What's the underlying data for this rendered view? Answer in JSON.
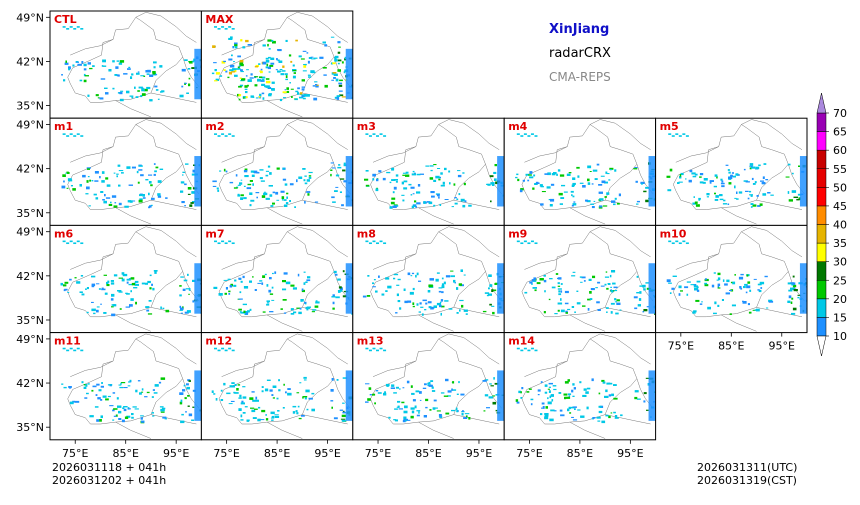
{
  "header": {
    "region": "XinJiang",
    "variable": "radarCRX",
    "model": "CMA-REPS"
  },
  "footer": {
    "init_line1": "2026031118  +  041h",
    "init_line2": "2026031202  +  041h",
    "valid_utc": "2026031311(UTC)",
    "valid_cst": "2026031319(CST)"
  },
  "chart_data": {
    "type": "heatmap",
    "title": "XinJiang radarCRX CMA-REPS",
    "panels": [
      {
        "label": "CTL",
        "row": 0,
        "col": 0
      },
      {
        "label": "MAX",
        "row": 0,
        "col": 1
      },
      {
        "label": "m1",
        "row": 1,
        "col": 0
      },
      {
        "label": "m2",
        "row": 1,
        "col": 1
      },
      {
        "label": "m3",
        "row": 1,
        "col": 2
      },
      {
        "label": "m4",
        "row": 1,
        "col": 3
      },
      {
        "label": "m5",
        "row": 1,
        "col": 4
      },
      {
        "label": "m6",
        "row": 2,
        "col": 0
      },
      {
        "label": "m7",
        "row": 2,
        "col": 1
      },
      {
        "label": "m8",
        "row": 2,
        "col": 2
      },
      {
        "label": "m9",
        "row": 2,
        "col": 3
      },
      {
        "label": "m10",
        "row": 2,
        "col": 4
      },
      {
        "label": "m11",
        "row": 3,
        "col": 0
      },
      {
        "label": "m12",
        "row": 3,
        "col": 1
      },
      {
        "label": "m13",
        "row": 3,
        "col": 2
      },
      {
        "label": "m14",
        "row": 3,
        "col": 3
      }
    ],
    "lat_ticks": [
      35,
      42,
      49
    ],
    "lat_tick_labels": [
      "35°N",
      "42°N",
      "49°N"
    ],
    "lon_ticks": [
      75,
      85,
      95
    ],
    "lon_tick_labels": [
      "75°E",
      "85°E",
      "95°E"
    ],
    "lon_range": [
      70,
      100
    ],
    "lat_range": [
      33,
      50
    ],
    "colorbar": {
      "levels": [
        10,
        15,
        20,
        25,
        30,
        35,
        40,
        45,
        50,
        55,
        60,
        65,
        70
      ],
      "labels": [
        "10",
        "15",
        "20",
        "25",
        "30",
        "35",
        "40",
        "45",
        "50",
        "55",
        "60",
        "65",
        "70"
      ],
      "colors": [
        "#1e90ff",
        "#00c8e6",
        "#00c800",
        "#007800",
        "#ffff00",
        "#e6b400",
        "#ff8c00",
        "#ff0000",
        "#e60000",
        "#c80000",
        "#ff00ff",
        "#9900b4",
        "#aa88dd"
      ],
      "under_color": "#ffffff",
      "extend": "both"
    }
  }
}
